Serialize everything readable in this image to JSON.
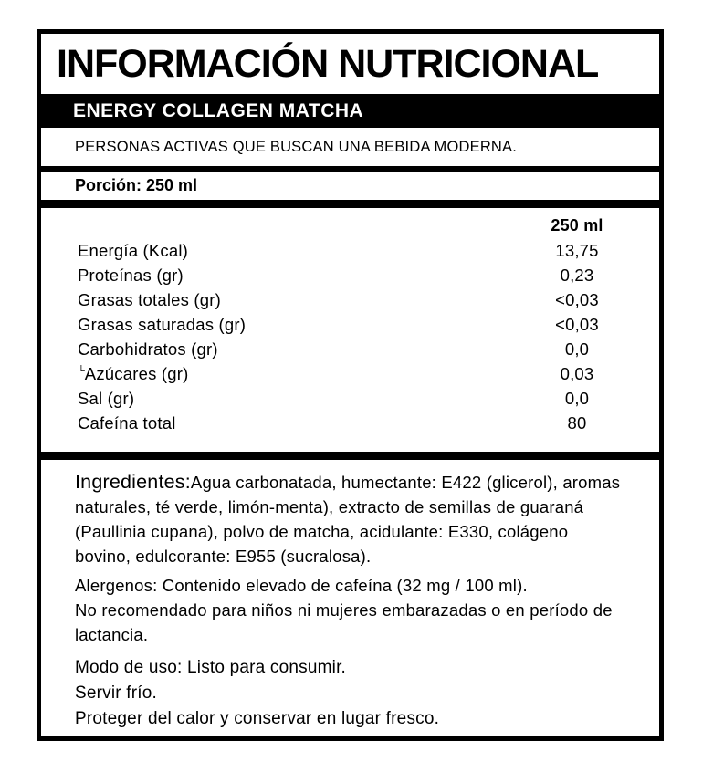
{
  "colors": {
    "ink": "#000000",
    "paper": "#ffffff"
  },
  "label": {
    "title": "INFORMACIÓN NUTRICIONAL",
    "product_name": "ENERGY COLLAGEN MATCHA",
    "tagline": "PERSONAS ACTIVAS QUE BUSCAN UNA BEBIDA MODERNA.",
    "portion": "Porción: 250 ml",
    "table": {
      "column_header": "250 ml",
      "rows": [
        {
          "label": "Energía (Kcal)",
          "value": "13,75"
        },
        {
          "label": "Proteínas (gr)",
          "value": "0,23"
        },
        {
          "label": "Grasas totales (gr)",
          "value": "<0,03"
        },
        {
          "label": "Grasas saturadas (gr)",
          "value": "<0,03"
        },
        {
          "label": "Carbohidratos (gr)",
          "value": "0,0"
        },
        {
          "label": "Azúcares (gr)",
          "value": "0,03",
          "prefix": "└"
        },
        {
          "label": "Sal (gr)",
          "value": "0,0"
        },
        {
          "label": "Cafeína total",
          "value": "80"
        }
      ]
    },
    "ingredients": {
      "heading": "Ingredientes:",
      "text": "Agua carbonatada, humectante: E422 (glicerol), aromas naturales, té verde, limón-menta), extracto de semillas de guaraná (Paullinia cupana), polvo de matcha, acidulante: E330, colágeno bovino, edulcorante: E955 (sucralosa)."
    },
    "allergens": {
      "line1": "Alergenos: Contenido elevado de cafeína (32 mg / 100 ml).",
      "line2": "No recomendado para niños ni mujeres embarazadas o en período de lactancia."
    },
    "usage": {
      "line1": "Modo de uso: Listo para consumir.",
      "line2": "Servir frío.",
      "line3": "Proteger del calor y conservar en lugar fresco."
    }
  }
}
